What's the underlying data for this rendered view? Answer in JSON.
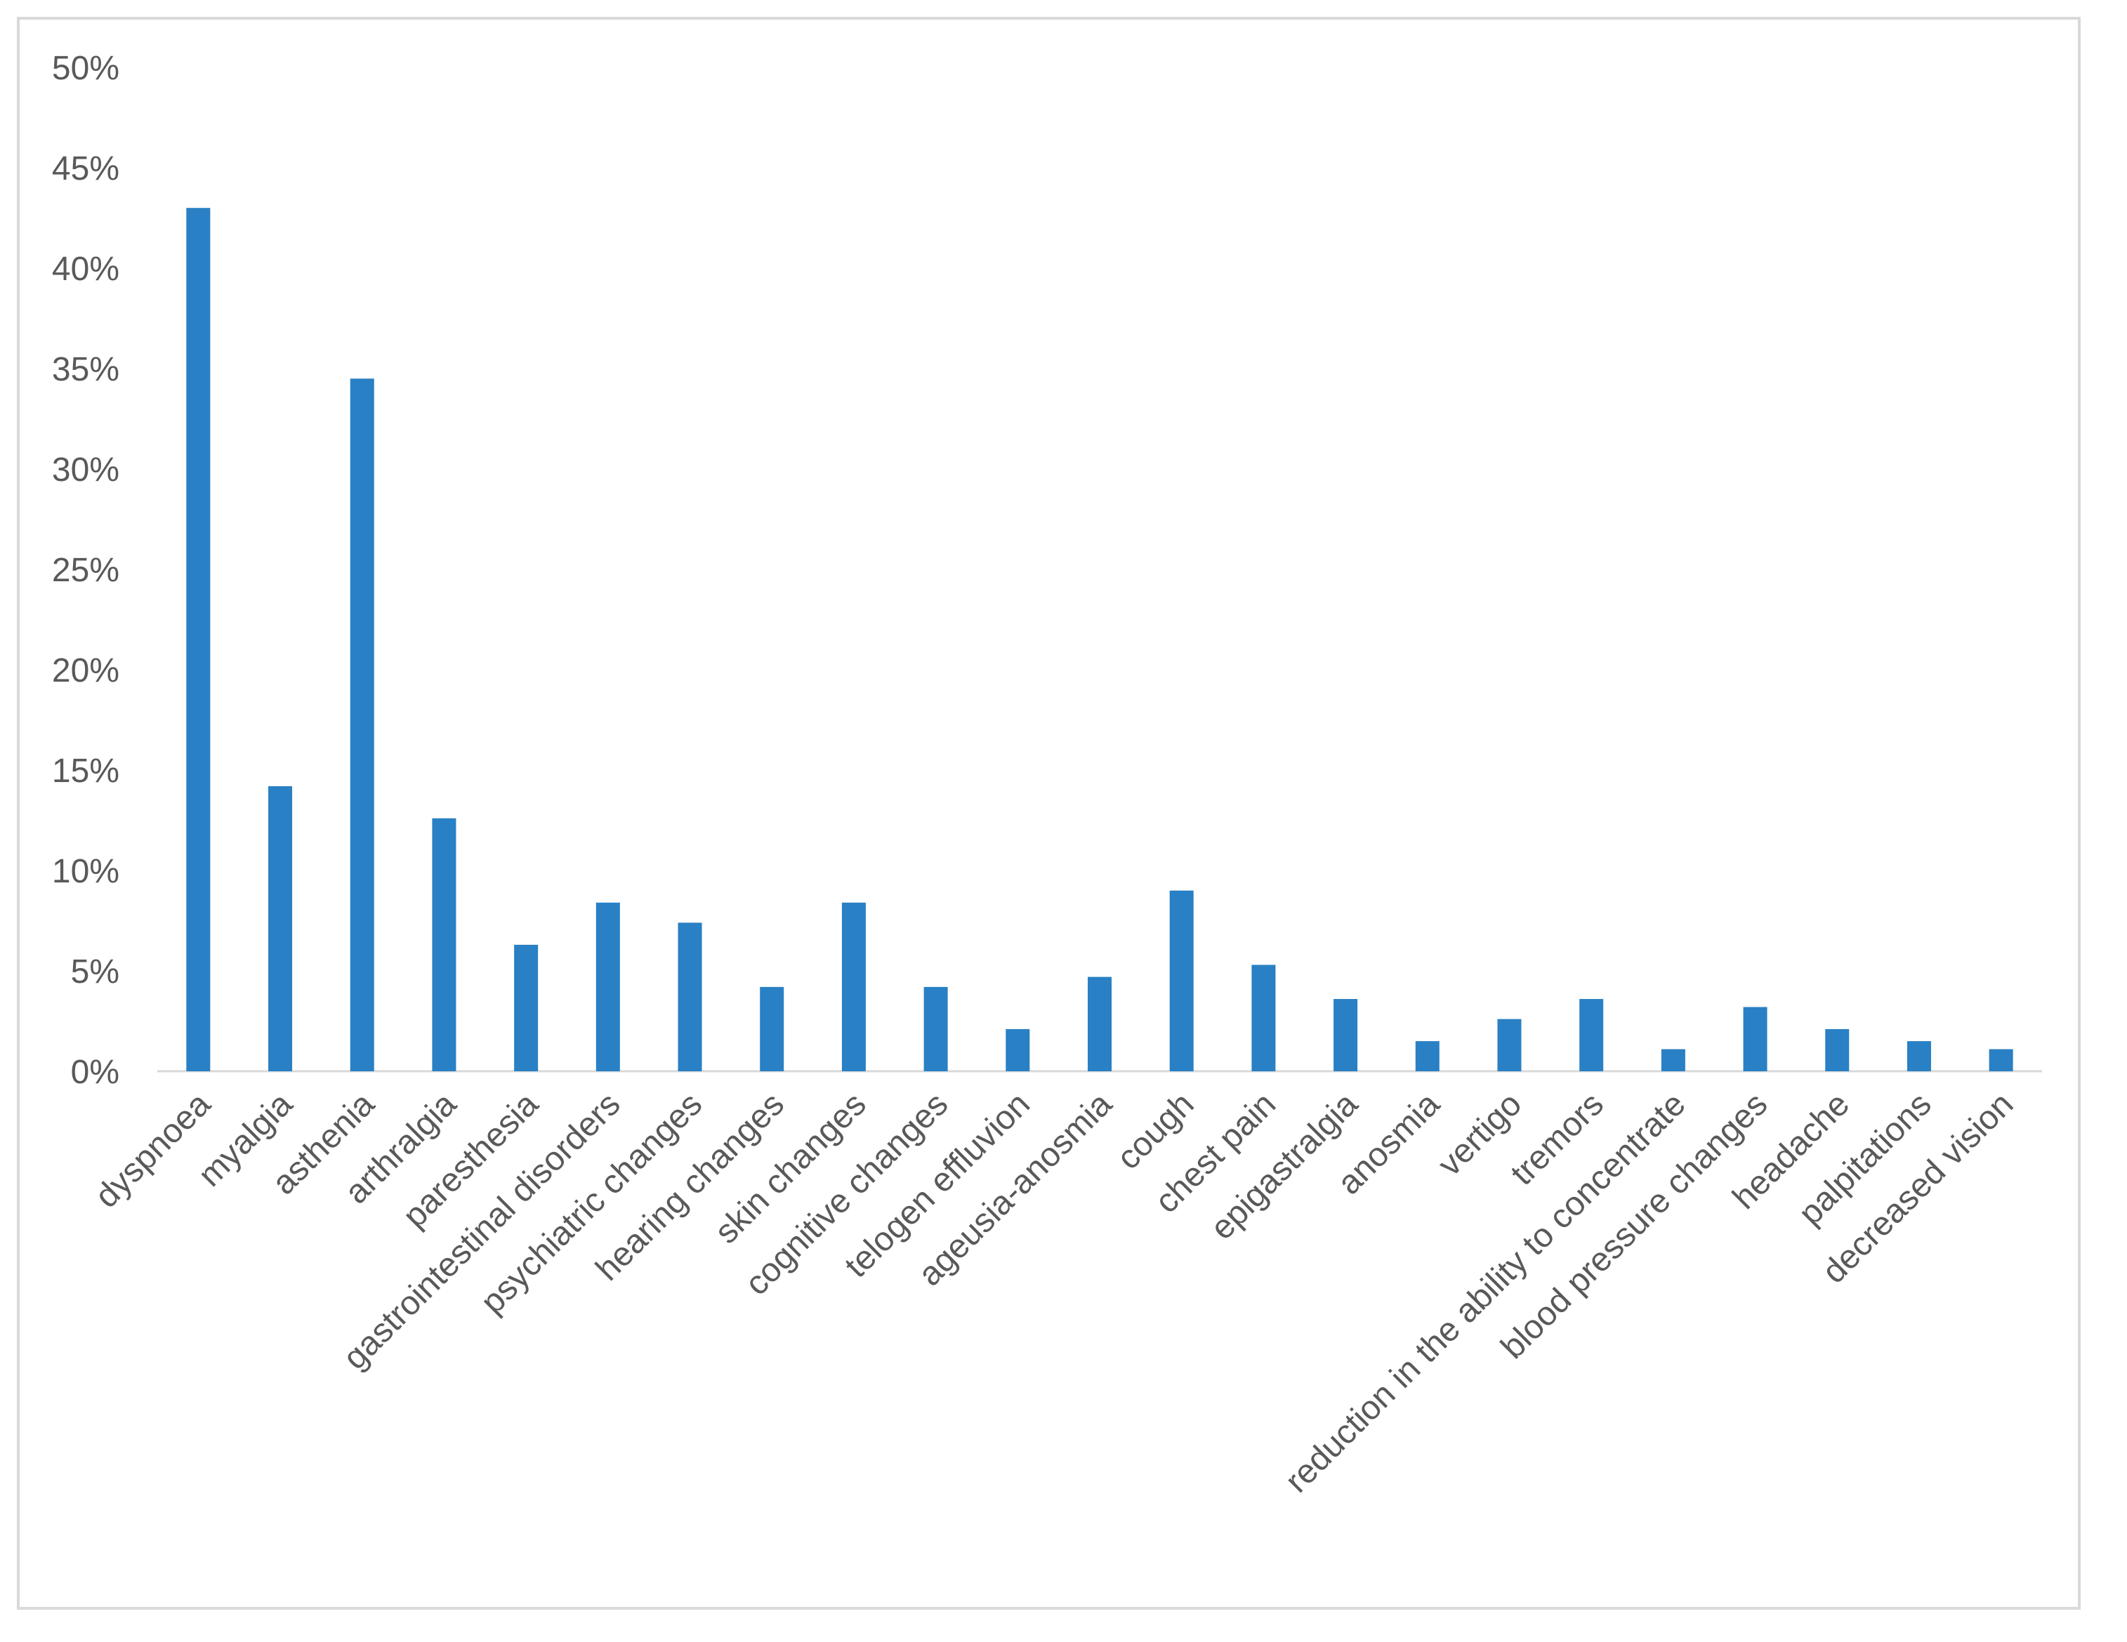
{
  "chart_data": {
    "type": "bar",
    "title": "",
    "xlabel": "",
    "ylabel": "",
    "ylim": [
      0,
      0.5
    ],
    "yticks": [
      "0%",
      "5%",
      "10%",
      "15%",
      "20%",
      "25%",
      "30%",
      "35%",
      "40%",
      "45%",
      "50%"
    ],
    "grid": false,
    "legend": "none",
    "bar_color": "#2980c4",
    "axis_color": "#d9d9d9",
    "text_color": "#595959",
    "categories": [
      "dyspnoea",
      "myalgia",
      "asthenia",
      "arthralgia",
      "paresthesia",
      "gastrointestinal disorders",
      "psychiatric changes",
      "hearing changes",
      "skin changes",
      "cognitive changes",
      "telogen effluvion",
      "ageusia-anosmia",
      "cough",
      "chest pain",
      "epigastralgia",
      "anosmia",
      "vertigo",
      "tremors",
      "reduction in the ability to concentrate",
      "blood pressure changes",
      "headache",
      "palpitations",
      "decreased vision"
    ],
    "values": [
      0.43,
      0.142,
      0.345,
      0.126,
      0.063,
      0.084,
      0.074,
      0.042,
      0.084,
      0.042,
      0.021,
      0.047,
      0.09,
      0.053,
      0.036,
      0.015,
      0.026,
      0.036,
      0.011,
      0.032,
      0.021,
      0.015,
      0.011
    ]
  }
}
